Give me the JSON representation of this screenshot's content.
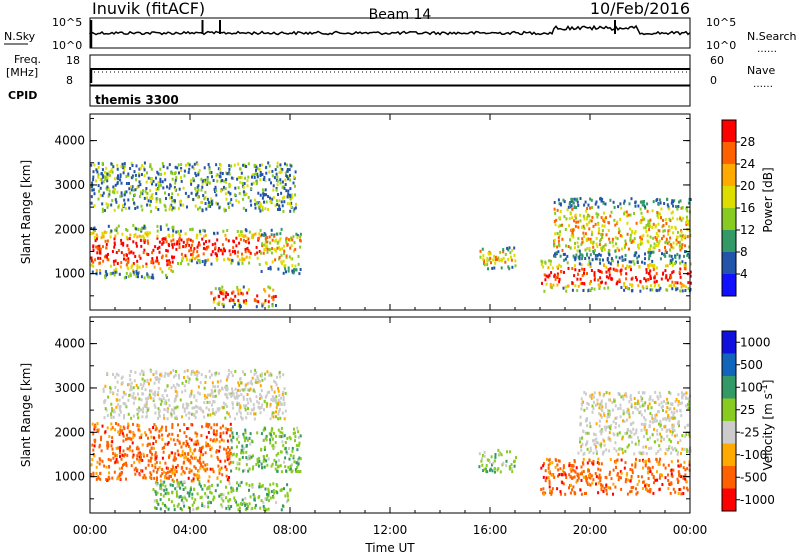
{
  "header": {
    "station": "Inuvik (fitACF)",
    "beam": "Beam 14",
    "date": "10/Feb/2016"
  },
  "noise_panel": {
    "left_label": "N.Sky",
    "left_ticks": [
      "10^5",
      "10^0"
    ],
    "right_label": "N.Search",
    "right_ticks": [
      "10^5",
      "10^0"
    ],
    "right_legend_marker": "……"
  },
  "freq_panel": {
    "left_label_top": "Freq.",
    "left_label_unit": "[MHz]",
    "left_ticks": [
      "18",
      "8"
    ],
    "right_label": "Nave",
    "right_ticks": [
      "60",
      "0"
    ],
    "right_legend_marker": "……"
  },
  "cpid_panel": {
    "label": "CPID",
    "program": "themis 3300"
  },
  "chart_data": [
    {
      "type": "heatmap",
      "name_shown": "",
      "x_quantity": "Time UT",
      "ylabel": "Slant Range [km]",
      "y_ticks": [
        "4000",
        "3000",
        "2000",
        "1000"
      ],
      "ylim": [
        180,
        4600
      ],
      "colorbar_label": "Power [dB]",
      "colorbar_ticks": [
        "28",
        "24",
        "20",
        "16",
        "12",
        "8",
        "4"
      ],
      "colorbar_colors": [
        "#ff0000",
        "#ff6000",
        "#ffaa00",
        "#dddd00",
        "#88cc22",
        "#339966",
        "#2255aa",
        "#1111ff"
      ],
      "regions": [
        {
          "t0": 0.0,
          "t1": 3.4,
          "r0": 900,
          "r1": 2100,
          "level": "high"
        },
        {
          "t0": 3.4,
          "t1": 6.8,
          "r0": 1200,
          "r1": 2000,
          "level": "high"
        },
        {
          "t0": 6.8,
          "t1": 8.4,
          "r0": 1000,
          "r1": 2000,
          "level": "mid"
        },
        {
          "t0": 0.0,
          "t1": 8.2,
          "r0": 2400,
          "r1": 3500,
          "level": "low"
        },
        {
          "t0": 4.8,
          "t1": 7.4,
          "r0": 250,
          "r1": 700,
          "level": "high"
        },
        {
          "t0": 18.0,
          "t1": 24.0,
          "r0": 600,
          "r1": 1300,
          "level": "high"
        },
        {
          "t0": 18.5,
          "t1": 24.0,
          "r0": 1300,
          "r1": 2700,
          "level": "mid"
        },
        {
          "t0": 15.5,
          "t1": 17.0,
          "r0": 1100,
          "r1": 1600,
          "level": "mid"
        }
      ]
    },
    {
      "type": "heatmap",
      "name_shown": "",
      "x_quantity": "Time UT",
      "ylabel": "Slant Range [km]",
      "y_ticks": [
        "4000",
        "3000",
        "2000",
        "1000"
      ],
      "ylim": [
        180,
        4600
      ],
      "colorbar_label": "Velocity [m s^-1]",
      "colorbar_ticks": [
        "1000",
        "500",
        "100",
        "25",
        "-25",
        "-100",
        "-500",
        "-1000"
      ],
      "colorbar_colors": [
        "#1111dd",
        "#1166bb",
        "#339966",
        "#88cc22",
        "#cccccc",
        "#ffaa00",
        "#ff6000",
        "#ff0000"
      ],
      "regions": [
        {
          "t0": 0.0,
          "t1": 5.6,
          "r0": 900,
          "r1": 2200,
          "level": "neg"
        },
        {
          "t0": 5.6,
          "t1": 8.4,
          "r0": 1100,
          "r1": 2100,
          "level": "pos"
        },
        {
          "t0": 0.5,
          "t1": 7.8,
          "r0": 2300,
          "r1": 3400,
          "level": "grey"
        },
        {
          "t0": 2.5,
          "t1": 8.0,
          "r0": 250,
          "r1": 900,
          "level": "pos"
        },
        {
          "t0": 18.0,
          "t1": 24.0,
          "r0": 600,
          "r1": 1400,
          "level": "neg"
        },
        {
          "t0": 19.5,
          "t1": 24.0,
          "r0": 1500,
          "r1": 2900,
          "level": "grey"
        },
        {
          "t0": 15.5,
          "t1": 17.0,
          "r0": 1100,
          "r1": 1600,
          "level": "pos"
        }
      ]
    }
  ],
  "time_axis": {
    "label": "Time UT",
    "ticks": [
      "00:00",
      "04:00",
      "08:00",
      "12:00",
      "16:00",
      "20:00",
      "00:00"
    ]
  },
  "colors": {
    "power_scale": [
      "#1111ff",
      "#2255aa",
      "#339966",
      "#88cc22",
      "#dddd00",
      "#ffaa00",
      "#ff6000",
      "#ff0000"
    ],
    "velocity_scale": [
      "#ff0000",
      "#ff6000",
      "#ffaa00",
      "#cccccc",
      "#88cc22",
      "#339966",
      "#1166bb",
      "#1111dd"
    ]
  }
}
